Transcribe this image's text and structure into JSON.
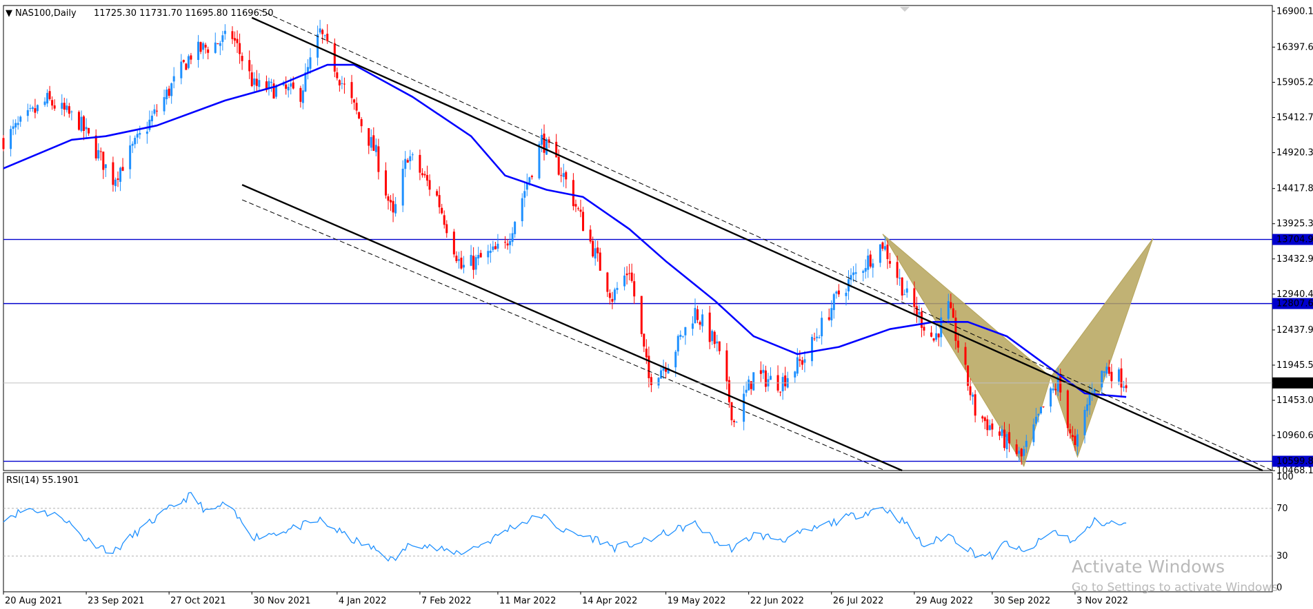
{
  "chart_data": {
    "type": "candlestick",
    "symbol_label": "NAS100,Daily",
    "ohlc_label": "11725.30 11731.70 11695.80 11696.50",
    "dropdown_glyph": "▼",
    "last_price": 11696.5,
    "last_price_label": "11696.50",
    "price_axis": {
      "ylim": [
        10470,
        16980
      ],
      "ticks": [
        {
          "value": 16900.15,
          "label": "16900.15"
        },
        {
          "value": 16397.65,
          "label": "16397.65"
        },
        {
          "value": 15905.2,
          "label": "15905.20"
        },
        {
          "value": 15412.75,
          "label": "15412.75"
        },
        {
          "value": 14920.3,
          "label": "14920.30"
        },
        {
          "value": 14417.8,
          "label": "14417.80"
        },
        {
          "value": 13925.35,
          "label": "13925.35"
        },
        {
          "value": 13432.9,
          "label": "13432.90"
        },
        {
          "value": 12940.45,
          "label": "12940.45"
        },
        {
          "value": 12437.95,
          "label": "12437.95"
        },
        {
          "value": 11945.5,
          "label": "11945.50"
        },
        {
          "value": 11453.05,
          "label": "11453.05"
        },
        {
          "value": 10960.6,
          "label": "10960.60"
        },
        {
          "value": 10468.15,
          "label": "10468.15"
        }
      ]
    },
    "x_axis": {
      "range": [
        "2021-08-20",
        "2023-01-23"
      ],
      "labels": [
        {
          "date": "2021-08-20",
          "label": "20 Aug 2021"
        },
        {
          "date": "2021-09-23",
          "label": "23 Sep 2021"
        },
        {
          "date": "2021-10-27",
          "label": "27 Oct 2021"
        },
        {
          "date": "2021-11-30",
          "label": "30 Nov 2021"
        },
        {
          "date": "2022-01-04",
          "label": "4 Jan 2022"
        },
        {
          "date": "2022-02-07",
          "label": "7 Feb 2022"
        },
        {
          "date": "2022-03-11",
          "label": "11 Mar 2022"
        },
        {
          "date": "2022-04-14",
          "label": "14 Apr 2022"
        },
        {
          "date": "2022-05-19",
          "label": "19 May 2022"
        },
        {
          "date": "2022-06-22",
          "label": "22 Jun 2022"
        },
        {
          "date": "2022-07-26",
          "label": "26 Jul 2022"
        },
        {
          "date": "2022-08-29",
          "label": "29 Aug 2022"
        },
        {
          "date": "2022-09-30",
          "label": "30 Sep 2022"
        },
        {
          "date": "2022-11-03",
          "label": "3 Nov 2022"
        }
      ]
    },
    "price_path": [
      {
        "date": "2021-08-20",
        "price": 15100
      },
      {
        "date": "2021-09-07",
        "price": 15650
      },
      {
        "date": "2021-09-20",
        "price": 15350
      },
      {
        "date": "2021-10-04",
        "price": 14550
      },
      {
        "date": "2021-10-20",
        "price": 15400
      },
      {
        "date": "2021-11-05",
        "price": 16300
      },
      {
        "date": "2021-11-22",
        "price": 16550
      },
      {
        "date": "2021-12-01",
        "price": 15850
      },
      {
        "date": "2021-12-20",
        "price": 15750
      },
      {
        "date": "2021-12-28",
        "price": 16600
      },
      {
        "date": "2022-01-06",
        "price": 15900
      },
      {
        "date": "2022-01-20",
        "price": 14900
      },
      {
        "date": "2022-01-27",
        "price": 14000
      },
      {
        "date": "2022-02-02",
        "price": 14900
      },
      {
        "date": "2022-02-14",
        "price": 14300
      },
      {
        "date": "2022-02-24",
        "price": 13300
      },
      {
        "date": "2022-03-14",
        "price": 13600
      },
      {
        "date": "2022-03-29",
        "price": 15100
      },
      {
        "date": "2022-04-07",
        "price": 14600
      },
      {
        "date": "2022-04-27",
        "price": 12900
      },
      {
        "date": "2022-05-04",
        "price": 13300
      },
      {
        "date": "2022-05-12",
        "price": 11750
      },
      {
        "date": "2022-05-20",
        "price": 12000
      },
      {
        "date": "2022-05-31",
        "price": 12700
      },
      {
        "date": "2022-06-09",
        "price": 12200
      },
      {
        "date": "2022-06-16",
        "price": 11150
      },
      {
        "date": "2022-06-24",
        "price": 11800
      },
      {
        "date": "2022-07-05",
        "price": 11700
      },
      {
        "date": "2022-07-15",
        "price": 12050
      },
      {
        "date": "2022-07-29",
        "price": 12950
      },
      {
        "date": "2022-08-16",
        "price": 13650
      },
      {
        "date": "2022-08-26",
        "price": 12900
      },
      {
        "date": "2022-09-06",
        "price": 12300
      },
      {
        "date": "2022-09-12",
        "price": 12750
      },
      {
        "date": "2022-09-23",
        "price": 11300
      },
      {
        "date": "2022-10-12",
        "price": 10650
      },
      {
        "date": "2022-10-21",
        "price": 11350
      },
      {
        "date": "2022-10-27",
        "price": 11700
      },
      {
        "date": "2022-11-03",
        "price": 10750
      },
      {
        "date": "2022-11-10",
        "price": 11650
      },
      {
        "date": "2022-11-16",
        "price": 11900
      },
      {
        "date": "2022-11-24",
        "price": 11700
      }
    ],
    "moving_average": [
      {
        "date": "2021-08-20",
        "price": 14700
      },
      {
        "date": "2021-09-17",
        "price": 15100
      },
      {
        "date": "2021-10-01",
        "price": 15150
      },
      {
        "date": "2021-10-22",
        "price": 15300
      },
      {
        "date": "2021-11-19",
        "price": 15650
      },
      {
        "date": "2021-12-10",
        "price": 15850
      },
      {
        "date": "2021-12-31",
        "price": 16150
      },
      {
        "date": "2022-01-11",
        "price": 16150
      },
      {
        "date": "2022-02-04",
        "price": 15700
      },
      {
        "date": "2022-02-28",
        "price": 15150
      },
      {
        "date": "2022-03-14",
        "price": 14600
      },
      {
        "date": "2022-03-31",
        "price": 14400
      },
      {
        "date": "2022-04-15",
        "price": 14300
      },
      {
        "date": "2022-05-04",
        "price": 13850
      },
      {
        "date": "2022-05-19",
        "price": 13400
      },
      {
        "date": "2022-06-08",
        "price": 12850
      },
      {
        "date": "2022-06-24",
        "price": 12350
      },
      {
        "date": "2022-07-12",
        "price": 12100
      },
      {
        "date": "2022-07-29",
        "price": 12200
      },
      {
        "date": "2022-08-19",
        "price": 12450
      },
      {
        "date": "2022-09-06",
        "price": 12550
      },
      {
        "date": "2022-09-20",
        "price": 12550
      },
      {
        "date": "2022-10-06",
        "price": 12350
      },
      {
        "date": "2022-10-24",
        "price": 11900
      },
      {
        "date": "2022-11-07",
        "price": 11550
      },
      {
        "date": "2022-11-24",
        "price": 11500
      }
    ],
    "horizontal_levels": [
      {
        "value": 13704.94,
        "label": "13704.94"
      },
      {
        "value": 12807.68,
        "label": "12807.68"
      },
      {
        "value": 10599.81,
        "label": "10599.81"
      }
    ],
    "trendlines": [
      {
        "style": "solid",
        "from": {
          "date": "2021-11-30",
          "price": 16810
        },
        "to": {
          "date": "2023-01-19",
          "price": 10470
        }
      },
      {
        "style": "dashed",
        "from": {
          "date": "2021-12-03",
          "price": 16920
        },
        "to": {
          "date": "2023-01-23",
          "price": 10470
        }
      },
      {
        "style": "solid",
        "from": {
          "date": "2021-11-26",
          "price": 14470
        },
        "to": {
          "date": "2022-08-24",
          "price": 10470
        }
      },
      {
        "style": "dashed",
        "from": {
          "date": "2021-11-26",
          "price": 14260
        },
        "to": {
          "date": "2022-08-17",
          "price": 10470
        }
      }
    ],
    "harmonic_pattern": {
      "color": "#b6a55c",
      "points": [
        {
          "date": "2022-08-16",
          "price": 13780
        },
        {
          "date": "2022-10-13",
          "price": 10530
        },
        {
          "date": "2022-10-24",
          "price": 11780
        },
        {
          "date": "2022-11-04",
          "price": 10660
        },
        {
          "date": "2022-12-05",
          "price": 13720
        }
      ]
    },
    "rsi": {
      "label": "RSI(14) 55.1901",
      "ylim": [
        0,
        100
      ],
      "levels": [
        70,
        30
      ],
      "ticks": [
        {
          "value": 100,
          "label": "100"
        },
        {
          "value": 70,
          "label": "70"
        },
        {
          "value": 30,
          "label": "30"
        },
        {
          "value": 0,
          "label": "0"
        }
      ],
      "path": [
        {
          "date": "2021-08-20",
          "value": 62
        },
        {
          "date": "2021-08-31",
          "value": 70
        },
        {
          "date": "2021-09-14",
          "value": 62
        },
        {
          "date": "2021-09-22",
          "value": 45
        },
        {
          "date": "2021-10-04",
          "value": 33
        },
        {
          "date": "2021-10-15",
          "value": 52
        },
        {
          "date": "2021-10-29",
          "value": 72
        },
        {
          "date": "2021-11-05",
          "value": 81
        },
        {
          "date": "2021-11-12",
          "value": 66
        },
        {
          "date": "2021-11-19",
          "value": 74
        },
        {
          "date": "2021-12-01",
          "value": 46
        },
        {
          "date": "2021-12-15",
          "value": 52
        },
        {
          "date": "2021-12-28",
          "value": 60
        },
        {
          "date": "2022-01-10",
          "value": 44
        },
        {
          "date": "2022-01-21",
          "value": 34
        },
        {
          "date": "2022-01-27",
          "value": 26
        },
        {
          "date": "2022-02-04",
          "value": 42
        },
        {
          "date": "2022-02-15",
          "value": 35
        },
        {
          "date": "2022-02-24",
          "value": 33
        },
        {
          "date": "2022-03-07",
          "value": 42
        },
        {
          "date": "2022-03-16",
          "value": 54
        },
        {
          "date": "2022-03-29",
          "value": 64
        },
        {
          "date": "2022-04-08",
          "value": 50
        },
        {
          "date": "2022-04-21",
          "value": 44
        },
        {
          "date": "2022-04-28",
          "value": 37
        },
        {
          "date": "2022-05-10",
          "value": 42
        },
        {
          "date": "2022-05-20",
          "value": 50
        },
        {
          "date": "2022-05-31",
          "value": 57
        },
        {
          "date": "2022-06-10",
          "value": 40
        },
        {
          "date": "2022-06-16",
          "value": 36
        },
        {
          "date": "2022-06-24",
          "value": 48
        },
        {
          "date": "2022-07-06",
          "value": 44
        },
        {
          "date": "2022-07-18",
          "value": 52
        },
        {
          "date": "2022-08-01",
          "value": 62
        },
        {
          "date": "2022-08-16",
          "value": 71
        },
        {
          "date": "2022-08-25",
          "value": 58
        },
        {
          "date": "2022-09-02",
          "value": 38
        },
        {
          "date": "2022-09-12",
          "value": 48
        },
        {
          "date": "2022-09-23",
          "value": 32
        },
        {
          "date": "2022-09-30",
          "value": 30
        },
        {
          "date": "2022-10-06",
          "value": 42
        },
        {
          "date": "2022-10-13",
          "value": 32
        },
        {
          "date": "2022-10-25",
          "value": 51
        },
        {
          "date": "2022-11-03",
          "value": 42
        },
        {
          "date": "2022-11-11",
          "value": 59
        },
        {
          "date": "2022-11-24",
          "value": 56
        }
      ]
    }
  },
  "watermark": {
    "title": "Activate Windows",
    "subtitle": "Go to Settings to activate Windows."
  },
  "colors": {
    "bull": "#1e90ff",
    "bear": "#ff0000",
    "ma": "#0000ff",
    "level": "#0000cd",
    "rsi": "#1e90ff",
    "pattern": "#b6a55c"
  }
}
